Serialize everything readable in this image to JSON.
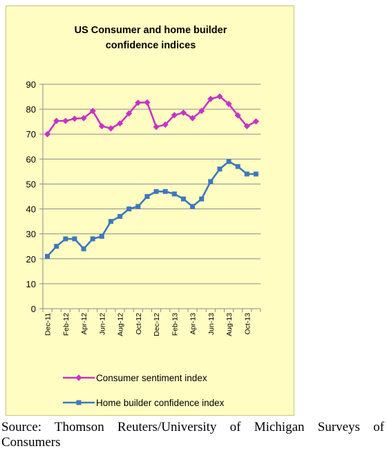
{
  "source_line1": "Source: Thomson Reuters/University of Michigan Surveys of",
  "source_line2": "Consumers",
  "chart_data": {
    "type": "line",
    "title_line1": "US Consumer and home builder",
    "title_line2": "confidence indices",
    "xlabel": "",
    "ylabel": "",
    "ylim": [
      0,
      90
    ],
    "yticks": [
      0,
      10,
      20,
      30,
      40,
      50,
      60,
      70,
      80,
      90
    ],
    "grid": true,
    "legend_position": "bottom",
    "x": [
      "Dec-11",
      "Jan-12",
      "Feb-12",
      "Mar-12",
      "Apr-12",
      "May-12",
      "Jun-12",
      "Jul-12",
      "Aug-12",
      "Sep-12",
      "Oct-12",
      "Nov-12",
      "Dec-12",
      "Jan-13",
      "Feb-13",
      "Mar-13",
      "Apr-13",
      "May-13",
      "Jun-13",
      "Jul-13",
      "Aug-13",
      "Sep-13",
      "Oct-13",
      "Nov-13"
    ],
    "xtick_labels": [
      "Dec-11",
      "Feb-12",
      "Apr-12",
      "Jun-12",
      "Aug-12",
      "Oct-12",
      "Dec-12",
      "Feb-13",
      "Apr-13",
      "Jun-13",
      "Aug-13",
      "Oct-13"
    ],
    "series": [
      {
        "name": "Consumer sentiment index",
        "color": "#c633c6",
        "marker": "diamond",
        "values": [
          70,
          75.3,
          75.3,
          76.2,
          76.4,
          79.3,
          73.2,
          72.3,
          74.3,
          78.3,
          82.6,
          82.7,
          72.9,
          73.8,
          77.6,
          78.6,
          76.4,
          79.3,
          84.1,
          85.1,
          82.1,
          77.5,
          73.2,
          75.1
        ]
      },
      {
        "name": "Home builder confidence index",
        "color": "#3d77bf",
        "marker": "square",
        "values": [
          21,
          25,
          28,
          28,
          24,
          28,
          29,
          35,
          37,
          40,
          41,
          45,
          47,
          47,
          46,
          44,
          41,
          44,
          51,
          56,
          59,
          57,
          54,
          54
        ]
      }
    ]
  }
}
